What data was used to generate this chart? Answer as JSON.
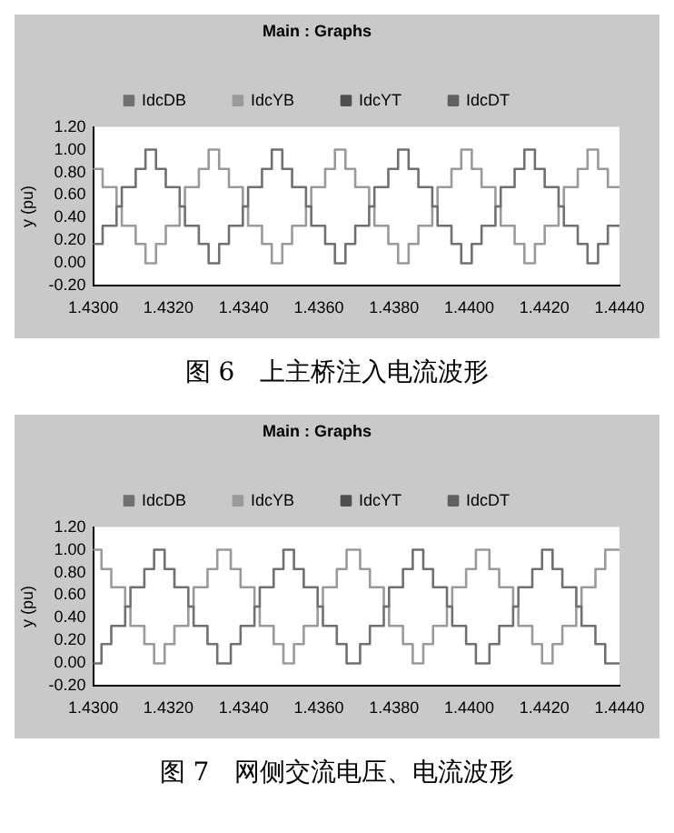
{
  "chart_data": [
    {
      "type": "line",
      "title": "Main : Graphs",
      "ylabel": "y (pu)",
      "legend": "top",
      "marker": "none",
      "grid": false,
      "xlim": [
        1.43,
        1.444
      ],
      "xticks": [
        {
          "value": 1.43,
          "label": "1.4300"
        },
        {
          "value": 1.432,
          "label": "1.4320"
        },
        {
          "value": 1.434,
          "label": "1.4340"
        },
        {
          "value": 1.436,
          "label": "1.4360"
        },
        {
          "value": 1.438,
          "label": "1.4380"
        },
        {
          "value": 1.44,
          "label": "1.4400"
        },
        {
          "value": 1.442,
          "label": "1.4420"
        },
        {
          "value": 1.444,
          "label": "1.4440"
        }
      ],
      "ylim": [
        -0.2,
        1.2
      ],
      "yticks": [
        {
          "value": -0.2,
          "label": "-0.20"
        },
        {
          "value": 0,
          "label": "0.00"
        },
        {
          "value": 0.2,
          "label": "0.20"
        },
        {
          "value": 0.4,
          "label": "0.40"
        },
        {
          "value": 0.6,
          "label": "0.60"
        },
        {
          "value": 0.8,
          "label": "0.80"
        },
        {
          "value": 1,
          "label": "1.00"
        },
        {
          "value": 1.2,
          "label": "1.20"
        }
      ],
      "annotations": [
        "图 6　上主桥注入电流波形"
      ],
      "series": [
        {
          "name": "IdcDB",
          "color": "#707070",
          "x": [
            1.43,
            1.43025,
            1.43025,
            1.43062,
            1.43062,
            1.43076,
            1.43076,
            1.43113,
            1.43113,
            1.43139,
            1.43139,
            1.43167,
            1.43167,
            1.43193,
            1.43193,
            1.4323,
            1.4323,
            1.43244,
            1.43244,
            1.43281,
            1.43281,
            1.43307,
            1.43307,
            1.43335,
            1.43335,
            1.43361,
            1.43361,
            1.43398,
            1.43398,
            1.43412,
            1.43412,
            1.43449,
            1.43449,
            1.43475,
            1.43475,
            1.43503,
            1.43503,
            1.43529,
            1.43529,
            1.43566,
            1.43566,
            1.4358,
            1.4358,
            1.43617,
            1.43617,
            1.43643,
            1.43643,
            1.43671,
            1.43671,
            1.43697,
            1.43697,
            1.43734,
            1.43734,
            1.43748,
            1.43748,
            1.43785,
            1.43785,
            1.43811,
            1.43811,
            1.43839,
            1.43839,
            1.43865,
            1.43865,
            1.43902,
            1.43902,
            1.43916,
            1.43916,
            1.43953,
            1.43953,
            1.43979,
            1.43979,
            1.44007,
            1.44007,
            1.44033,
            1.44033,
            1.4407,
            1.4407,
            1.44084,
            1.44084,
            1.44121,
            1.44121,
            1.44147,
            1.44147,
            1.44175,
            1.44175,
            1.44201,
            1.44201,
            1.44238,
            1.44238,
            1.44252,
            1.44252,
            1.44289,
            1.44289,
            1.44315,
            1.44315,
            1.44343,
            1.44343,
            1.44369,
            1.44369,
            1.444
          ],
          "values": [
            0.17,
            0.17,
            0.33,
            0.33,
            0.5,
            0.5,
            0.67,
            0.67,
            0.83,
            0.83,
            1,
            1,
            0.83,
            0.83,
            0.67,
            0.67,
            0.5,
            0.5,
            0.33,
            0.33,
            0.17,
            0.17,
            0,
            0,
            0.17,
            0.17,
            0.33,
            0.33,
            0.5,
            0.5,
            0.67,
            0.67,
            0.83,
            0.83,
            1,
            1,
            0.83,
            0.83,
            0.67,
            0.67,
            0.5,
            0.5,
            0.33,
            0.33,
            0.17,
            0.17,
            0,
            0,
            0.17,
            0.17,
            0.33,
            0.33,
            0.5,
            0.5,
            0.67,
            0.67,
            0.83,
            0.83,
            1,
            1,
            0.83,
            0.83,
            0.67,
            0.67,
            0.5,
            0.5,
            0.33,
            0.33,
            0.17,
            0.17,
            0,
            0,
            0.17,
            0.17,
            0.33,
            0.33,
            0.5,
            0.5,
            0.67,
            0.67,
            0.83,
            0.83,
            1,
            1,
            0.83,
            0.83,
            0.67,
            0.67,
            0.5,
            0.5,
            0.33,
            0.33,
            0.17,
            0.17,
            0,
            0,
            0.17,
            0.17,
            0.33,
            0.33
          ]
        },
        {
          "name": "IdcYB",
          "color": "#9a9a9a",
          "x": [
            1.43,
            1.43025,
            1.43025,
            1.43062,
            1.43062,
            1.43076,
            1.43076,
            1.43113,
            1.43113,
            1.43139,
            1.43139,
            1.43167,
            1.43167,
            1.43193,
            1.43193,
            1.4323,
            1.4323,
            1.43244,
            1.43244,
            1.43281,
            1.43281,
            1.43307,
            1.43307,
            1.43335,
            1.43335,
            1.43361,
            1.43361,
            1.43398,
            1.43398,
            1.43412,
            1.43412,
            1.43449,
            1.43449,
            1.43475,
            1.43475,
            1.43503,
            1.43503,
            1.43529,
            1.43529,
            1.43566,
            1.43566,
            1.4358,
            1.4358,
            1.43617,
            1.43617,
            1.43643,
            1.43643,
            1.43671,
            1.43671,
            1.43697,
            1.43697,
            1.43734,
            1.43734,
            1.43748,
            1.43748,
            1.43785,
            1.43785,
            1.43811,
            1.43811,
            1.43839,
            1.43839,
            1.43865,
            1.43865,
            1.43902,
            1.43902,
            1.43916,
            1.43916,
            1.43953,
            1.43953,
            1.43979,
            1.43979,
            1.44007,
            1.44007,
            1.44033,
            1.44033,
            1.4407,
            1.4407,
            1.44084,
            1.44084,
            1.44121,
            1.44121,
            1.44147,
            1.44147,
            1.44175,
            1.44175,
            1.44201,
            1.44201,
            1.44238,
            1.44238,
            1.44252,
            1.44252,
            1.44289,
            1.44289,
            1.44315,
            1.44315,
            1.44343,
            1.44343,
            1.44369,
            1.44369,
            1.444
          ],
          "values": [
            0.83,
            0.83,
            0.67,
            0.67,
            0.5,
            0.5,
            0.33,
            0.33,
            0.17,
            0.17,
            0,
            0,
            0.17,
            0.17,
            0.33,
            0.33,
            0.5,
            0.5,
            0.67,
            0.67,
            0.83,
            0.83,
            1,
            1,
            0.83,
            0.83,
            0.67,
            0.67,
            0.5,
            0.5,
            0.33,
            0.33,
            0.17,
            0.17,
            0,
            0,
            0.17,
            0.17,
            0.33,
            0.33,
            0.5,
            0.5,
            0.67,
            0.67,
            0.83,
            0.83,
            1,
            1,
            0.83,
            0.83,
            0.67,
            0.67,
            0.5,
            0.5,
            0.33,
            0.33,
            0.17,
            0.17,
            0,
            0,
            0.17,
            0.17,
            0.33,
            0.33,
            0.5,
            0.5,
            0.67,
            0.67,
            0.83,
            0.83,
            1,
            1,
            0.83,
            0.83,
            0.67,
            0.67,
            0.5,
            0.5,
            0.33,
            0.33,
            0.17,
            0.17,
            0,
            0,
            0.17,
            0.17,
            0.33,
            0.33,
            0.5,
            0.5,
            0.67,
            0.67,
            0.83,
            0.83,
            1,
            1,
            0.83,
            0.83,
            0.67,
            0.67
          ]
        },
        {
          "name": "IdcYT",
          "color": "#505050"
        },
        {
          "name": "IdcDT",
          "color": "#606060"
        }
      ]
    },
    {
      "type": "line",
      "title": "Main : Graphs",
      "ylabel": "y (pu)",
      "legend": "top",
      "marker": "none",
      "grid": false,
      "xlim": [
        1.43,
        1.444
      ],
      "xticks": [
        {
          "value": 1.43,
          "label": "1.4300"
        },
        {
          "value": 1.432,
          "label": "1.4320"
        },
        {
          "value": 1.434,
          "label": "1.4340"
        },
        {
          "value": 1.436,
          "label": "1.4360"
        },
        {
          "value": 1.438,
          "label": "1.4380"
        },
        {
          "value": 1.44,
          "label": "1.4400"
        },
        {
          "value": 1.442,
          "label": "1.4420"
        },
        {
          "value": 1.444,
          "label": "1.4440"
        }
      ],
      "ylim": [
        -0.2,
        1.2
      ],
      "yticks": [
        {
          "value": -0.2,
          "label": "-0.20"
        },
        {
          "value": 0,
          "label": "0.00"
        },
        {
          "value": 0.2,
          "label": "0.20"
        },
        {
          "value": 0.4,
          "label": "0.40"
        },
        {
          "value": 0.6,
          "label": "0.60"
        },
        {
          "value": 0.8,
          "label": "0.80"
        },
        {
          "value": 1,
          "label": "1.00"
        },
        {
          "value": 1.2,
          "label": "1.20"
        }
      ],
      "annotations": [
        "图 7　网侧交流电压、电流波形"
      ],
      "series": [
        {
          "name": "IdcDB",
          "color": "#707070",
          "x": [
            1.43,
            1.43022,
            1.43022,
            1.43048,
            1.43048,
            1.43085,
            1.43085,
            1.43099,
            1.43099,
            1.43136,
            1.43136,
            1.43162,
            1.43162,
            1.4319,
            1.4319,
            1.43216,
            1.43216,
            1.43253,
            1.43253,
            1.43267,
            1.43267,
            1.43304,
            1.43304,
            1.4333,
            1.4333,
            1.43366,
            1.43366,
            1.43392,
            1.43392,
            1.43429,
            1.43429,
            1.43443,
            1.43443,
            1.4348,
            1.4348,
            1.43506,
            1.43506,
            1.43534,
            1.43534,
            1.4356,
            1.4356,
            1.43597,
            1.43597,
            1.43611,
            1.43611,
            1.43648,
            1.43648,
            1.43674,
            1.43674,
            1.4371,
            1.4371,
            1.43736,
            1.43736,
            1.43773,
            1.43773,
            1.43787,
            1.43787,
            1.43824,
            1.43824,
            1.4385,
            1.4385,
            1.43878,
            1.43878,
            1.43904,
            1.43904,
            1.43941,
            1.43941,
            1.43955,
            1.43955,
            1.43992,
            1.43992,
            1.44018,
            1.44018,
            1.44054,
            1.44054,
            1.4408,
            1.4408,
            1.44117,
            1.44117,
            1.44131,
            1.44131,
            1.44168,
            1.44168,
            1.44194,
            1.44194,
            1.44222,
            1.44222,
            1.44248,
            1.44248,
            1.44285,
            1.44285,
            1.44299,
            1.44299,
            1.44336,
            1.44336,
            1.44362,
            1.44362,
            1.444
          ],
          "values": [
            0,
            0,
            0.17,
            0.17,
            0.33,
            0.33,
            0.5,
            0.5,
            0.67,
            0.67,
            0.83,
            0.83,
            1,
            1,
            0.83,
            0.83,
            0.67,
            0.67,
            0.5,
            0.5,
            0.33,
            0.33,
            0.17,
            0.17,
            0,
            0,
            0.17,
            0.17,
            0.33,
            0.33,
            0.5,
            0.5,
            0.67,
            0.67,
            0.83,
            0.83,
            1,
            1,
            0.83,
            0.83,
            0.67,
            0.67,
            0.5,
            0.5,
            0.33,
            0.33,
            0.17,
            0.17,
            0,
            0,
            0.17,
            0.17,
            0.33,
            0.33,
            0.5,
            0.5,
            0.67,
            0.67,
            0.83,
            0.83,
            1,
            1,
            0.83,
            0.83,
            0.67,
            0.67,
            0.5,
            0.5,
            0.33,
            0.33,
            0.17,
            0.17,
            0,
            0,
            0.17,
            0.17,
            0.33,
            0.33,
            0.5,
            0.5,
            0.67,
            0.67,
            0.83,
            0.83,
            1,
            1,
            0.83,
            0.83,
            0.67,
            0.67,
            0.5,
            0.5,
            0.33,
            0.33,
            0.17,
            0.17,
            0,
            0
          ]
        },
        {
          "name": "IdcYB",
          "color": "#9a9a9a",
          "x": [
            1.43,
            1.43022,
            1.43022,
            1.43048,
            1.43048,
            1.43085,
            1.43085,
            1.43099,
            1.43099,
            1.43136,
            1.43136,
            1.43162,
            1.43162,
            1.4319,
            1.4319,
            1.43216,
            1.43216,
            1.43253,
            1.43253,
            1.43267,
            1.43267,
            1.43304,
            1.43304,
            1.4333,
            1.4333,
            1.43366,
            1.43366,
            1.43392,
            1.43392,
            1.43429,
            1.43429,
            1.43443,
            1.43443,
            1.4348,
            1.4348,
            1.43506,
            1.43506,
            1.43534,
            1.43534,
            1.4356,
            1.4356,
            1.43597,
            1.43597,
            1.43611,
            1.43611,
            1.43648,
            1.43648,
            1.43674,
            1.43674,
            1.4371,
            1.4371,
            1.43736,
            1.43736,
            1.43773,
            1.43773,
            1.43787,
            1.43787,
            1.43824,
            1.43824,
            1.4385,
            1.4385,
            1.43878,
            1.43878,
            1.43904,
            1.43904,
            1.43941,
            1.43941,
            1.43955,
            1.43955,
            1.43992,
            1.43992,
            1.44018,
            1.44018,
            1.44054,
            1.44054,
            1.4408,
            1.4408,
            1.44117,
            1.44117,
            1.44131,
            1.44131,
            1.44168,
            1.44168,
            1.44194,
            1.44194,
            1.44222,
            1.44222,
            1.44248,
            1.44248,
            1.44285,
            1.44285,
            1.44299,
            1.44299,
            1.44336,
            1.44336,
            1.44362,
            1.44362,
            1.444
          ],
          "values": [
            1,
            1,
            0.83,
            0.83,
            0.67,
            0.67,
            0.5,
            0.5,
            0.33,
            0.33,
            0.17,
            0.17,
            0,
            0,
            0.17,
            0.17,
            0.33,
            0.33,
            0.5,
            0.5,
            0.67,
            0.67,
            0.83,
            0.83,
            1,
            1,
            0.83,
            0.83,
            0.67,
            0.67,
            0.5,
            0.5,
            0.33,
            0.33,
            0.17,
            0.17,
            0,
            0,
            0.17,
            0.17,
            0.33,
            0.33,
            0.5,
            0.5,
            0.67,
            0.67,
            0.83,
            0.83,
            1,
            1,
            0.83,
            0.83,
            0.67,
            0.67,
            0.5,
            0.5,
            0.33,
            0.33,
            0.17,
            0.17,
            0,
            0,
            0.17,
            0.17,
            0.33,
            0.33,
            0.5,
            0.5,
            0.67,
            0.67,
            0.83,
            0.83,
            1,
            1,
            0.83,
            0.83,
            0.67,
            0.67,
            0.5,
            0.5,
            0.33,
            0.33,
            0.17,
            0.17,
            0,
            0,
            0.17,
            0.17,
            0.33,
            0.33,
            0.5,
            0.5,
            0.67,
            0.67,
            0.83,
            0.83,
            1,
            1
          ]
        },
        {
          "name": "IdcYT",
          "color": "#505050"
        },
        {
          "name": "IdcDT",
          "color": "#606060"
        }
      ]
    }
  ]
}
